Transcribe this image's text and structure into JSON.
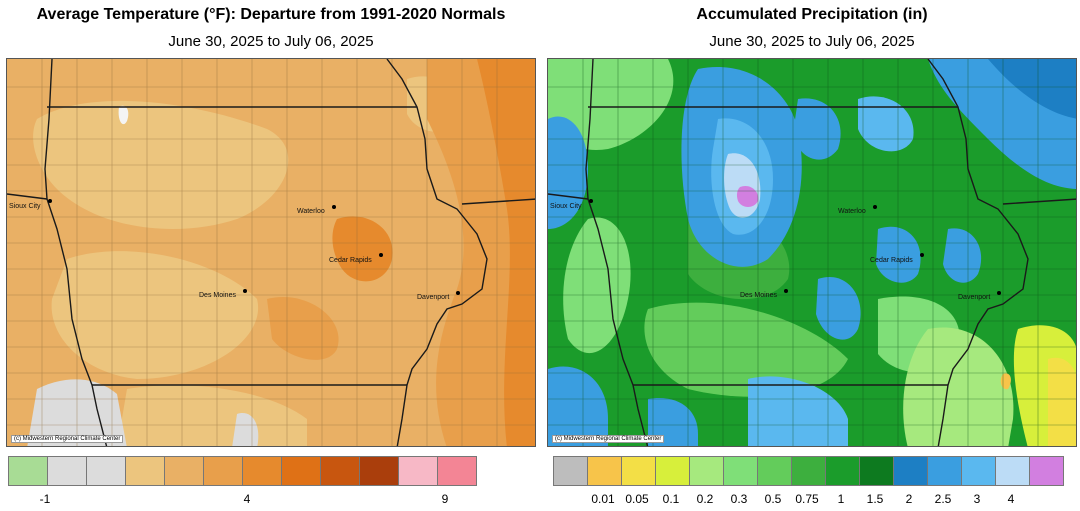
{
  "temperature_map": {
    "title": "Average Temperature (°F): Departure from 1991-2020 Normals",
    "subtitle": "June 30, 2025 to July 06, 2025",
    "credit": "(c) Midwestern Regional Climate Center",
    "cities": [
      "Sioux City",
      "Waterloo",
      "Cedar Rapids",
      "Des Moines",
      "Davenport"
    ],
    "legend": {
      "colors": [
        "#a8dc95",
        "#dcdcdc",
        "#dcdcdc",
        "#ecc57e",
        "#e9b065",
        "#e89f4b",
        "#e68a2d",
        "#df7116",
        "#c8560f",
        "#aa3e0c",
        "#f7b8c6",
        "#f38595"
      ],
      "tick_labels": [
        "-1",
        "4",
        "9"
      ]
    }
  },
  "precip_map": {
    "title": "Accumulated Precipitation (in)",
    "subtitle": "June 30, 2025 to July 06, 2025",
    "credit": "(c) Midwestern Regional Climate Center",
    "cities": [
      "Sioux City",
      "Waterloo",
      "Cedar Rapids",
      "Des Moines",
      "Davenport"
    ],
    "legend": {
      "colors": [
        "#bdbdbd",
        "#f7c44a",
        "#f3df46",
        "#d7ef3b",
        "#a6e97e",
        "#7fdf78",
        "#63cc5b",
        "#3daf3e",
        "#1b9c2b",
        "#0d7a1f",
        "#1d7fc4",
        "#3a9ee0",
        "#5ab8ef",
        "#bcdcf6",
        "#d27fe0"
      ],
      "tick_labels": [
        "0.01",
        "0.05",
        "0.1",
        "0.2",
        "0.3",
        "0.5",
        "0.75",
        "1",
        "1.5",
        "2",
        "2.5",
        "3",
        "4"
      ]
    }
  }
}
